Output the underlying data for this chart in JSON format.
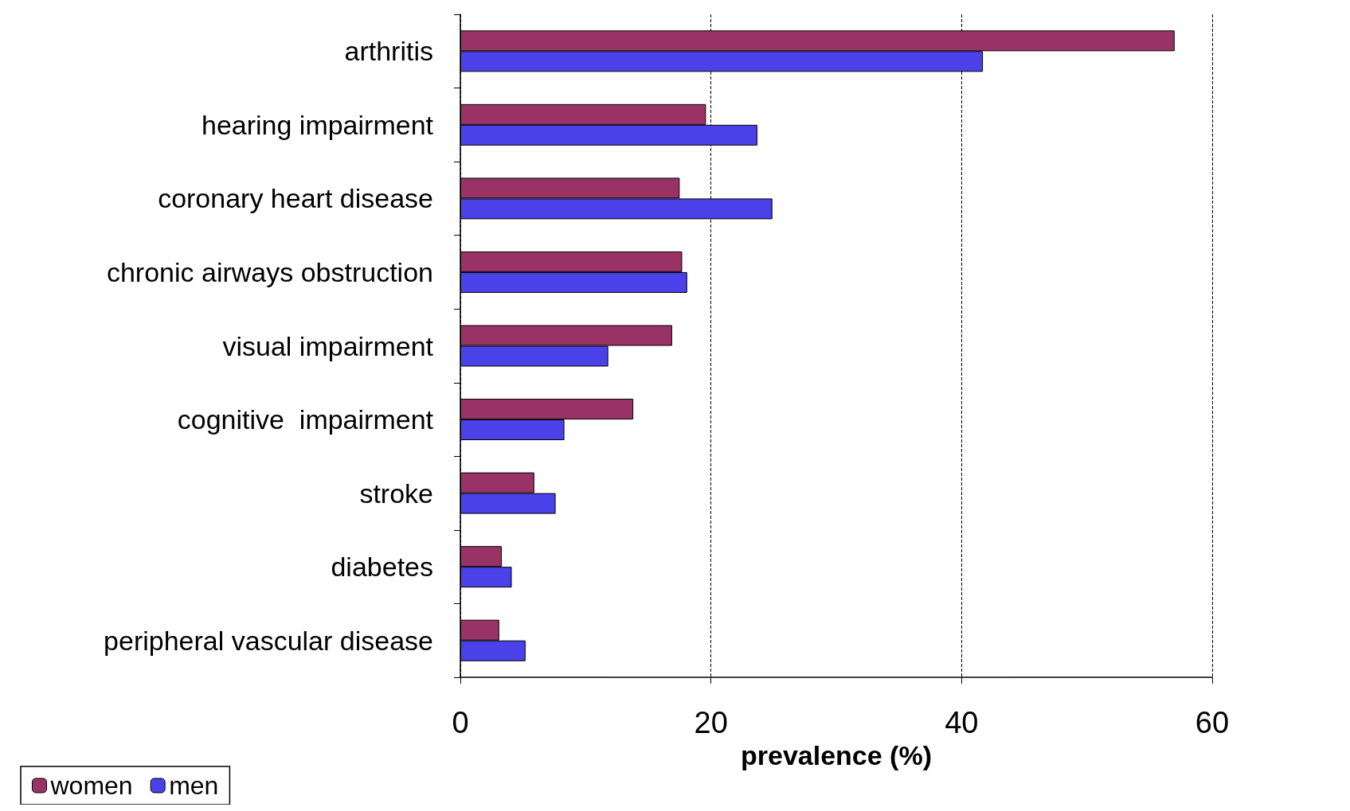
{
  "chart_data": {
    "type": "bar",
    "orientation": "horizontal",
    "xlabel": "prevalence (%)",
    "categories": [
      "arthritis",
      "hearing impairment",
      "coronary heart disease",
      "chronic airways obstruction",
      "visual impairment",
      "cognitive  impairment",
      "stroke",
      "diabetes",
      "peripheral vascular disease"
    ],
    "series": [
      {
        "name": "women",
        "color": "#993366",
        "values": [
          57.0,
          19.6,
          17.5,
          17.7,
          16.9,
          13.8,
          5.9,
          3.3,
          3.1
        ]
      },
      {
        "name": "men",
        "color": "#4a41e8",
        "values": [
          41.7,
          23.7,
          24.9,
          18.1,
          11.8,
          8.3,
          7.6,
          4.1,
          5.2
        ]
      }
    ],
    "xlim": [
      0,
      60
    ],
    "xticks": [
      0,
      20,
      40,
      60
    ],
    "grid": "x",
    "legend": "bottom left"
  }
}
